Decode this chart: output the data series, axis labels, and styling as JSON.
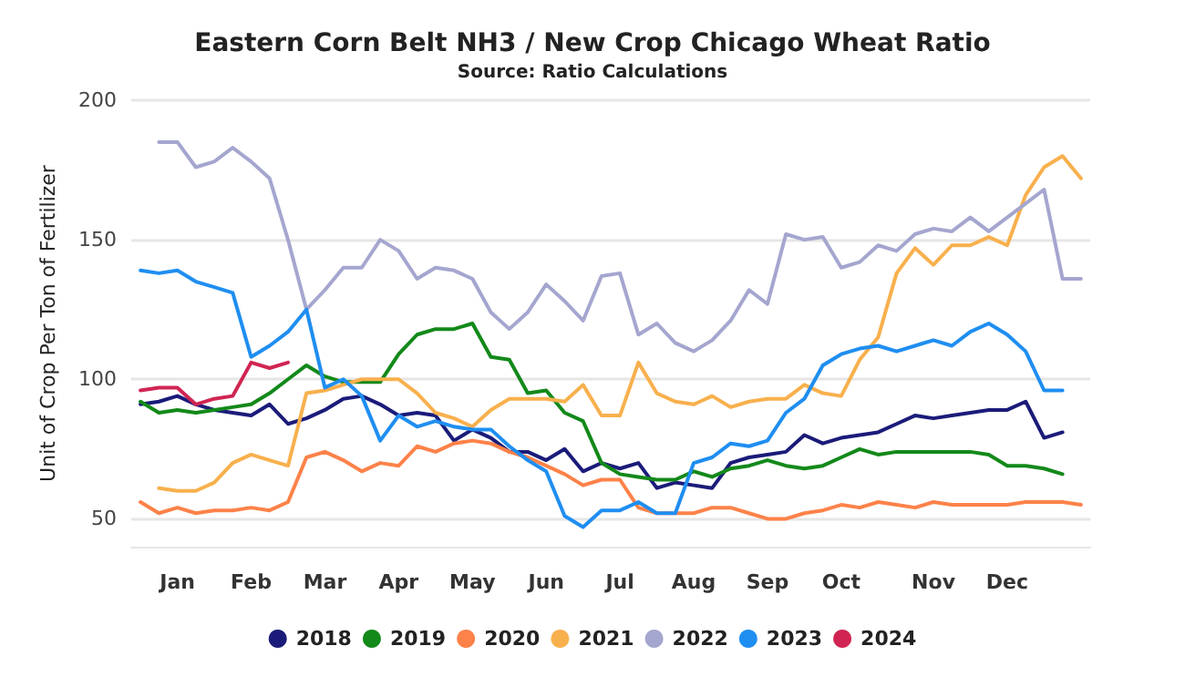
{
  "chart_data": {
    "type": "line",
    "title": "Eastern Corn Belt NH3 / New Crop Chicago Wheat Ratio",
    "subtitle": "Source: Ratio Calculations",
    "ylabel": "Unit of Crop Per Ton of Fertilizer",
    "categories": [
      null,
      null,
      "Jan",
      null,
      null,
      null,
      "Feb",
      null,
      null,
      null,
      "Mar",
      null,
      null,
      null,
      "Apr",
      null,
      null,
      null,
      "May",
      null,
      null,
      null,
      "Jun",
      null,
      null,
      null,
      "Jul",
      null,
      null,
      null,
      "Aug",
      null,
      null,
      null,
      "Sep",
      null,
      null,
      null,
      "Oct",
      null,
      null,
      null,
      null,
      "Nov",
      null,
      null,
      null,
      "Dec",
      null,
      null,
      null,
      null
    ],
    "ylim": [
      40,
      200
    ],
    "yticks": [
      50,
      100,
      150,
      200
    ],
    "grid": "y",
    "legend": "bottom",
    "marker": "none",
    "line_style": "solid",
    "series": [
      {
        "name": "2018",
        "color": "#1b1b7a",
        "values": [
          91,
          92,
          94,
          91,
          89,
          88,
          87,
          91,
          84,
          86,
          89,
          93,
          94,
          91,
          87,
          88,
          87,
          78,
          82,
          79,
          74,
          74,
          71,
          75,
          67,
          70,
          68,
          70,
          61,
          63,
          62,
          61,
          70,
          72,
          73,
          74,
          80,
          77,
          79,
          80,
          81,
          84,
          87,
          86,
          87,
          88,
          89,
          89,
          92,
          79,
          81,
          null
        ]
      },
      {
        "name": "2019",
        "color": "#13891a",
        "values": [
          92,
          88,
          89,
          88,
          89,
          90,
          91,
          95,
          100,
          105,
          101,
          99,
          99,
          99,
          109,
          116,
          118,
          118,
          120,
          108,
          107,
          95,
          96,
          88,
          85,
          70,
          66,
          65,
          64,
          64,
          67,
          65,
          68,
          69,
          71,
          69,
          68,
          69,
          72,
          75,
          73,
          74,
          74,
          74,
          74,
          74,
          73,
          69,
          69,
          68,
          66,
          null
        ]
      },
      {
        "name": "2020",
        "color": "#fd8249",
        "values": [
          56,
          52,
          54,
          52,
          53,
          53,
          54,
          53,
          56,
          72,
          74,
          71,
          67,
          70,
          69,
          76,
          74,
          77,
          78,
          77,
          74,
          72,
          69,
          66,
          62,
          64,
          64,
          54,
          52,
          52,
          52,
          54,
          54,
          52,
          50,
          50,
          52,
          53,
          55,
          54,
          56,
          55,
          54,
          56,
          55,
          55,
          55,
          55,
          56,
          56,
          56,
          55
        ]
      },
      {
        "name": "2021",
        "color": "#f8b04d",
        "values": [
          null,
          61,
          60,
          60,
          63,
          70,
          73,
          71,
          69,
          95,
          96,
          98,
          100,
          100,
          100,
          95,
          88,
          86,
          83,
          89,
          93,
          93,
          93,
          92,
          98,
          87,
          87,
          106,
          95,
          92,
          91,
          94,
          90,
          92,
          93,
          93,
          98,
          95,
          94,
          107,
          115,
          138,
          147,
          141,
          148,
          148,
          151,
          148,
          166,
          176,
          180,
          172
        ]
      },
      {
        "name": "2022",
        "color": "#a5a6cf",
        "values": [
          null,
          185,
          185,
          176,
          178,
          183,
          178,
          172,
          150,
          125,
          132,
          140,
          140,
          150,
          146,
          136,
          140,
          139,
          136,
          124,
          118,
          124,
          134,
          128,
          121,
          137,
          138,
          116,
          120,
          113,
          110,
          114,
          121,
          132,
          127,
          152,
          150,
          151,
          140,
          142,
          148,
          146,
          152,
          154,
          153,
          158,
          153,
          158,
          163,
          168,
          136,
          136
        ]
      },
      {
        "name": "2023",
        "color": "#1f8ef1",
        "values": [
          139,
          138,
          139,
          135,
          133,
          131,
          108,
          112,
          117,
          125,
          97,
          100,
          94,
          78,
          87,
          83,
          85,
          83,
          82,
          82,
          76,
          71,
          67,
          51,
          47,
          53,
          53,
          56,
          52,
          52,
          70,
          72,
          77,
          76,
          78,
          88,
          93,
          105,
          109,
          111,
          112,
          110,
          112,
          114,
          112,
          117,
          120,
          116,
          110,
          96,
          96,
          null
        ]
      },
      {
        "name": "2024",
        "color": "#d02552",
        "values": [
          96,
          97,
          97,
          91,
          93,
          94,
          106,
          104,
          106,
          null,
          null,
          null,
          null,
          null,
          null,
          null,
          null,
          null,
          null,
          null,
          null,
          null,
          null,
          null,
          null,
          null,
          null,
          null,
          null,
          null,
          null,
          null,
          null,
          null,
          null,
          null,
          null,
          null,
          null,
          null,
          null,
          null,
          null,
          null,
          null,
          null,
          null,
          null,
          null,
          null,
          null,
          null
        ]
      }
    ]
  }
}
